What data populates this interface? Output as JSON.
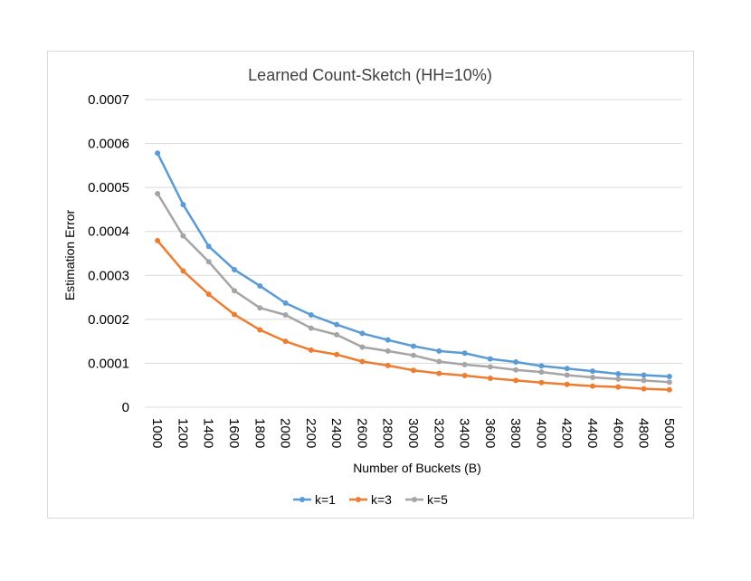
{
  "chart_data": {
    "type": "line",
    "title": "Learned Count-Sketch (HH=10%)",
    "xlabel": "Number of Buckets (B)",
    "ylabel": "Estimation Error",
    "x": [
      1000,
      1200,
      1400,
      1600,
      1800,
      2000,
      2200,
      2400,
      2600,
      2800,
      3000,
      3200,
      3400,
      3600,
      3800,
      4000,
      4200,
      4400,
      4600,
      4800,
      5000
    ],
    "ylim": [
      0,
      0.0007
    ],
    "yticks": [
      "0",
      "0.0001",
      "0.0002",
      "0.0003",
      "0.0004",
      "0.0005",
      "0.0006",
      "0.0007"
    ],
    "ytick_values": [
      0,
      0.0001,
      0.0002,
      0.0003,
      0.0004,
      0.0005,
      0.0006,
      0.0007
    ],
    "grid": true,
    "legend_position": "bottom",
    "series": [
      {
        "name": "k=1",
        "color": "#5b9bd5",
        "values": [
          0.000578,
          0.000461,
          0.000366,
          0.000313,
          0.000276,
          0.000237,
          0.00021,
          0.000188,
          0.000168,
          0.000153,
          0.000139,
          0.000128,
          0.000123,
          0.00011,
          0.000103,
          9.4e-05,
          8.8e-05,
          8.2e-05,
          7.6e-05,
          7.3e-05,
          7e-05
        ]
      },
      {
        "name": "k=3",
        "color": "#ed7d31",
        "values": [
          0.000379,
          0.00031,
          0.000257,
          0.000211,
          0.000176,
          0.00015,
          0.00013,
          0.00012,
          0.000104,
          9.5e-05,
          8.4e-05,
          7.7e-05,
          7.2e-05,
          6.6e-05,
          6.1e-05,
          5.6e-05,
          5.2e-05,
          4.8e-05,
          4.6e-05,
          4.2e-05,
          4e-05
        ]
      },
      {
        "name": "k=5",
        "color": "#a5a5a5",
        "values": [
          0.000486,
          0.00039,
          0.000331,
          0.000265,
          0.000226,
          0.00021,
          0.00018,
          0.000165,
          0.000137,
          0.000128,
          0.000118,
          0.000104,
          9.7e-05,
          9.2e-05,
          8.5e-05,
          8e-05,
          7.3e-05,
          6.8e-05,
          6.4e-05,
          6.1e-05,
          5.7e-05
        ]
      }
    ]
  }
}
